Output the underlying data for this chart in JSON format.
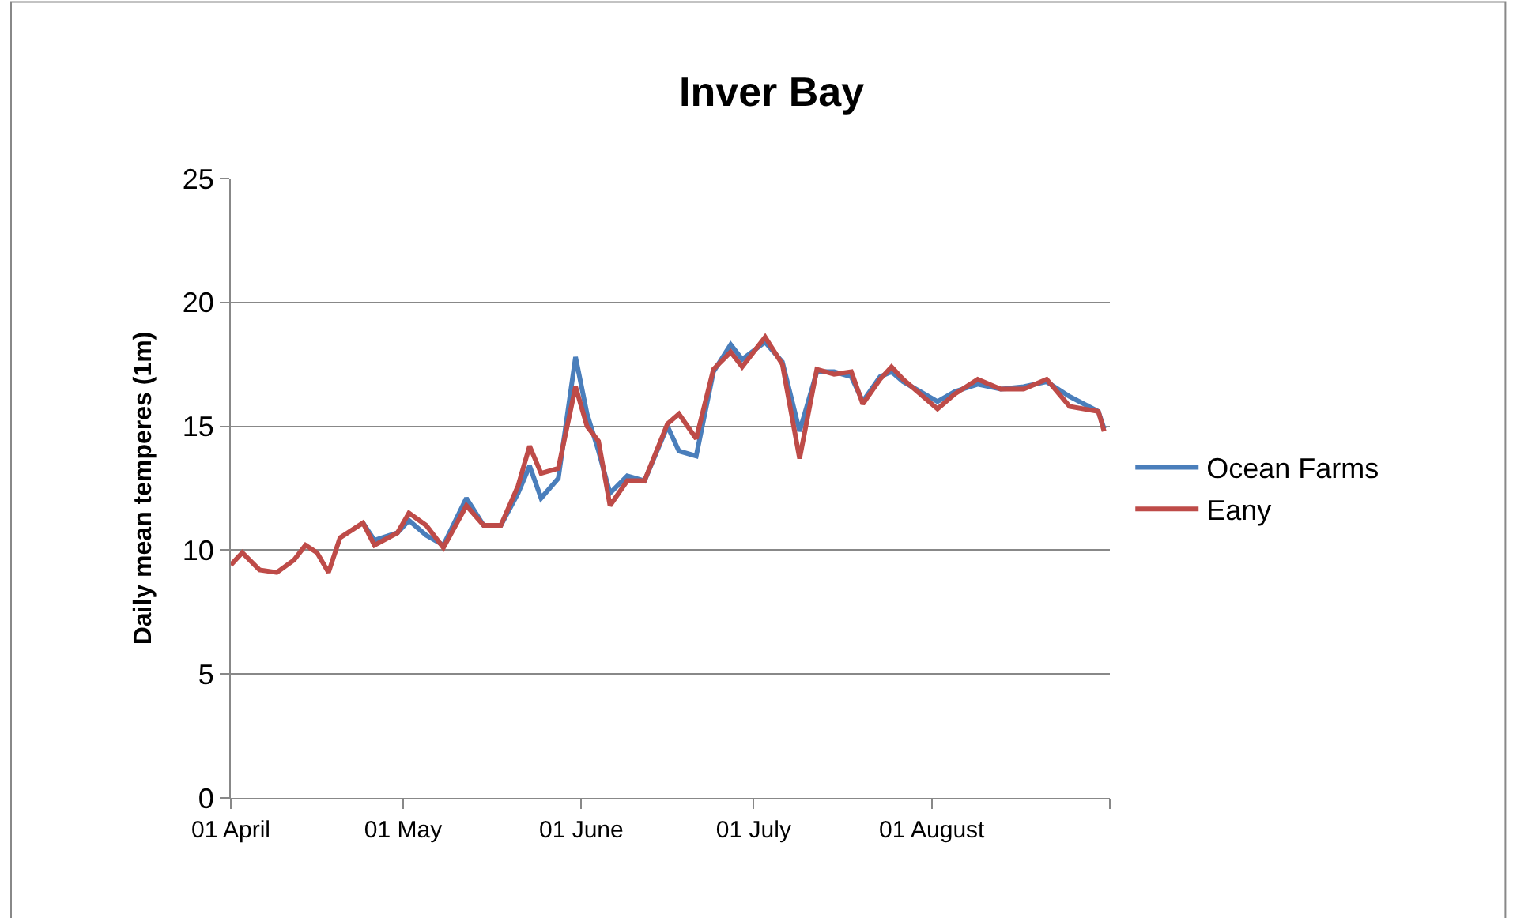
{
  "chart_data": {
    "type": "line",
    "title": "Inver Bay",
    "ylabel": "Daily mean temperes (1m)",
    "x": [
      "--04-01",
      "--04-03",
      "--04-06",
      "--04-09",
      "--04-12",
      "--04-14",
      "--04-16",
      "--04-18",
      "--04-20",
      "--04-24",
      "--04-26",
      "--04-30",
      "--05-02",
      "--05-05",
      "--05-08",
      "--05-12",
      "--05-15",
      "--05-18",
      "--05-21",
      "--05-23",
      "--05-25",
      "--05-28",
      "--05-31",
      "--06-02",
      "--06-04",
      "--06-06",
      "--06-09",
      "--06-12",
      "--06-16",
      "--06-18",
      "--06-21",
      "--06-24",
      "--06-27",
      "--06-29",
      "--07-03",
      "--07-06",
      "--07-09",
      "--07-12",
      "--07-15",
      "--07-18",
      "--07-20",
      "--07-23",
      "--07-25",
      "--07-27",
      "--07-30",
      "--08-02",
      "--08-05",
      "--08-09",
      "--08-13",
      "--08-17",
      "--08-21",
      "--08-25",
      "--08-30",
      "--08-31"
    ],
    "series": [
      {
        "name": "Ocean Farms",
        "color": "#4a7ebb",
        "values": [
          null,
          null,
          null,
          null,
          null,
          null,
          null,
          null,
          null,
          11.1,
          10.4,
          10.7,
          11.2,
          10.6,
          10.2,
          12.1,
          11.0,
          11.0,
          12.3,
          13.4,
          12.1,
          12.9,
          17.8,
          15.5,
          14.0,
          12.3,
          13.0,
          12.8,
          15.0,
          14.0,
          13.8,
          17.2,
          18.3,
          17.7,
          18.4,
          17.6,
          14.8,
          17.2,
          17.2,
          17.0,
          16.0,
          17.0,
          17.2,
          16.8,
          16.4,
          16.0,
          16.4,
          16.7,
          16.5,
          16.6,
          16.8,
          16.2,
          15.6,
          14.9
        ]
      },
      {
        "name": "Eany",
        "color": "#be4b48",
        "values": [
          9.4,
          9.9,
          9.2,
          9.1,
          9.6,
          10.2,
          9.9,
          9.1,
          10.5,
          11.1,
          10.2,
          10.7,
          11.5,
          11.0,
          10.1,
          11.8,
          11.0,
          11.0,
          12.6,
          14.2,
          13.1,
          13.3,
          16.6,
          15.0,
          14.4,
          11.8,
          12.8,
          12.8,
          15.1,
          15.5,
          14.5,
          17.3,
          18.0,
          17.4,
          18.6,
          17.5,
          13.7,
          17.3,
          17.1,
          17.2,
          15.9,
          16.9,
          17.4,
          16.9,
          16.3,
          15.7,
          16.3,
          16.9,
          16.5,
          16.5,
          16.9,
          15.8,
          15.6,
          14.8
        ]
      }
    ],
    "xlim": [
      "--04-01",
      "--09-01"
    ],
    "xticks": [
      {
        "value": "--04-01",
        "label": "01 April"
      },
      {
        "value": "--05-01",
        "label": "01 May"
      },
      {
        "value": "--06-01",
        "label": "01 June"
      },
      {
        "value": "--07-01",
        "label": "01 July"
      },
      {
        "value": "--08-01",
        "label": "01 August"
      },
      {
        "value": "--09-01",
        "label": null
      }
    ],
    "ylim": [
      0,
      25
    ],
    "yticks": [
      0,
      5,
      10,
      15,
      20,
      25
    ],
    "grid": "y",
    "legend": "right",
    "marker": "none",
    "line_style": "solid"
  }
}
